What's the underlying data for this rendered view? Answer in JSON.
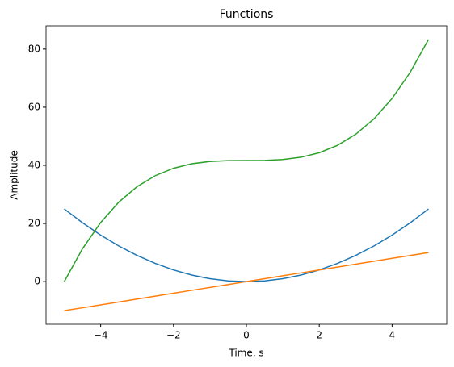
{
  "chart_data": {
    "type": "line",
    "title": "Functions",
    "x_label": "Time, s",
    "y_label": "Amplitude",
    "x": [
      -5,
      -4.5,
      -4,
      -3.5,
      -3,
      -2.5,
      -2,
      -1.5,
      -1,
      -0.5,
      0,
      0.5,
      1,
      1.5,
      2,
      2.5,
      3,
      3.5,
      4,
      4.5,
      5
    ],
    "series": [
      {
        "color": "#1f77b4",
        "values": [
          25,
          20.25,
          16,
          12.25,
          9,
          6.25,
          4,
          2.25,
          1,
          0.25,
          0,
          0.25,
          1,
          2.25,
          4,
          6.25,
          9,
          12.25,
          16,
          20.25,
          25
        ]
      },
      {
        "color": "#ff7f0e",
        "values": [
          -10,
          -9,
          -8,
          -7,
          -6,
          -5,
          -4,
          -3,
          -2,
          -1,
          0,
          1,
          2,
          3,
          4,
          5,
          6,
          7,
          8,
          9,
          10
        ]
      },
      {
        "color": "#2ca02c",
        "values": [
          0,
          11.29,
          20.33,
          27.38,
          32.67,
          36.46,
          39.0,
          40.54,
          41.33,
          41.63,
          41.67,
          41.71,
          42.0,
          42.79,
          44.33,
          46.88,
          50.67,
          55.96,
          63.0,
          72.04,
          83.33
        ]
      }
    ],
    "xlim": [
      -5.5,
      5.5
    ],
    "xticks": [
      {
        "value": -4,
        "label": "−4"
      },
      {
        "value": -2,
        "label": "−2"
      },
      0,
      2,
      4
    ],
    "ylim": [
      -14.67,
      88
    ],
    "yticks": [
      0,
      20,
      40,
      60,
      80
    ],
    "grid": false
  }
}
